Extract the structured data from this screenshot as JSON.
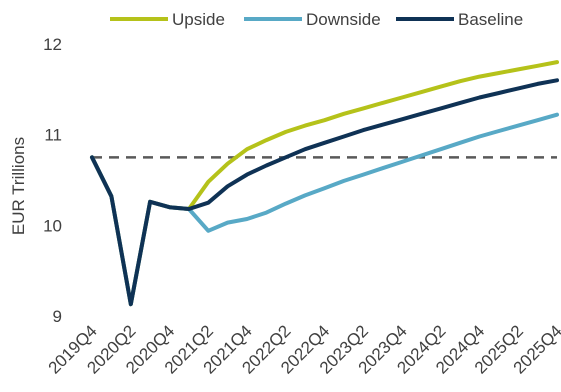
{
  "chart_data": {
    "type": "line",
    "title": "",
    "xlabel": "",
    "ylabel": "EUR Trillions",
    "ylim": [
      9,
      12
    ],
    "yticks": [
      9,
      10,
      11,
      12
    ],
    "grid": false,
    "legend_position": "top",
    "x": [
      "2019Q4",
      "2020Q1",
      "2020Q2",
      "2020Q3",
      "2020Q4",
      "2021Q1",
      "2021Q2",
      "2021Q3",
      "2021Q4",
      "2022Q1",
      "2022Q2",
      "2022Q3",
      "2022Q4",
      "2023Q1",
      "2023Q2",
      "2023Q3",
      "2023Q4",
      "2024Q1",
      "2024Q2",
      "2024Q3",
      "2024Q4",
      "2025Q1",
      "2025Q2",
      "2025Q3",
      "2025Q4"
    ],
    "xtick_labels": [
      "2019Q4",
      "2020Q2",
      "2020Q4",
      "2021Q2",
      "2021Q4",
      "2022Q2",
      "2022Q4",
      "2023Q2",
      "2023Q4",
      "2024Q2",
      "2024Q4",
      "2025Q2",
      "2025Q4"
    ],
    "reference_line": {
      "value": 10.75,
      "style": "dashed",
      "color": "#595959"
    },
    "series": [
      {
        "name": "Upside",
        "color": "#b5c21a",
        "values": [
          10.75,
          10.32,
          9.13,
          10.26,
          10.2,
          10.18,
          10.48,
          10.68,
          10.84,
          10.94,
          11.03,
          11.1,
          11.16,
          11.23,
          11.29,
          11.35,
          11.41,
          11.47,
          11.53,
          11.59,
          11.64,
          11.68,
          11.72,
          11.76,
          11.8
        ]
      },
      {
        "name": "Downside",
        "color": "#58a9c6",
        "values": [
          10.75,
          10.32,
          9.13,
          10.26,
          10.2,
          10.18,
          9.94,
          10.03,
          10.07,
          10.14,
          10.24,
          10.33,
          10.41,
          10.49,
          10.56,
          10.63,
          10.7,
          10.77,
          10.84,
          10.91,
          10.98,
          11.04,
          11.1,
          11.16,
          11.22
        ]
      },
      {
        "name": "Baseline",
        "color": "#0f3255",
        "values": [
          10.75,
          10.32,
          9.13,
          10.26,
          10.2,
          10.18,
          10.25,
          10.43,
          10.56,
          10.66,
          10.75,
          10.84,
          10.91,
          10.98,
          11.05,
          11.11,
          11.17,
          11.23,
          11.29,
          11.35,
          11.41,
          11.46,
          11.51,
          11.56,
          11.6
        ]
      }
    ]
  }
}
